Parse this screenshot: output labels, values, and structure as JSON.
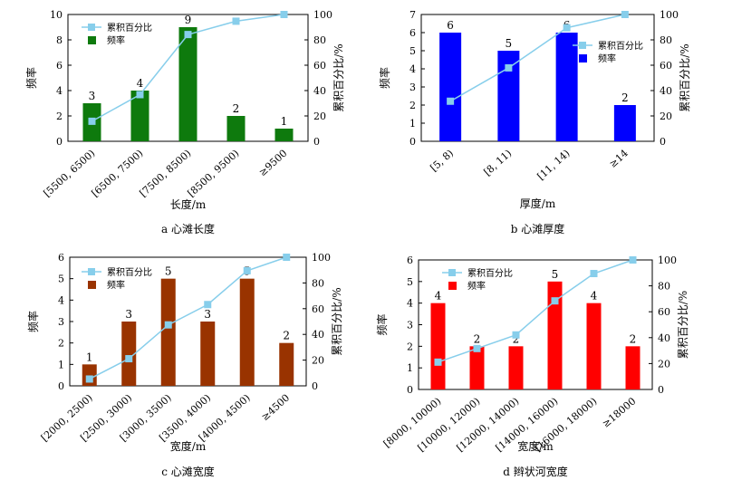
{
  "legend": {
    "line_label": "累积百分比",
    "bar_label": "频率"
  },
  "left_axis_label": "频率",
  "right_axis_label": "累积百分比/%",
  "line_color": "#87CEEB",
  "chart_data": [
    {
      "type": "bar",
      "caption": "a 心滩长度",
      "xlabel": "长度/m",
      "ylabel": "频率",
      "y2label": "累积百分比/%",
      "categories": [
        "[5500, 6500)",
        "[6500, 7500)",
        "[7500, 8500)",
        "[8500, 9500)",
        "≥9500"
      ],
      "values": [
        3,
        4,
        9,
        2,
        1
      ],
      "cumulative": [
        15.8,
        36.8,
        84.2,
        94.7,
        100
      ],
      "ylim": [
        0,
        10
      ],
      "yticks": [
        0,
        2,
        4,
        6,
        8,
        10
      ],
      "y2lim": [
        0,
        100
      ],
      "bar_color": "#0E7A0D",
      "legend_position": "top-left"
    },
    {
      "type": "bar",
      "caption": "b 心滩厚度",
      "xlabel": "厚度/m",
      "ylabel": "频率",
      "y2label": "累积百分比/%",
      "categories": [
        "[5, 8)",
        "[8, 11)",
        "[11, 14)",
        "≥14"
      ],
      "values": [
        6,
        5,
        6,
        2
      ],
      "cumulative": [
        31.6,
        57.9,
        89.5,
        100
      ],
      "ylim": [
        0,
        7
      ],
      "yticks": [
        0,
        1,
        2,
        3,
        4,
        5,
        6,
        7
      ],
      "y2lim": [
        0,
        100
      ],
      "bar_color": "#0000FF",
      "legend_position": "top-right"
    },
    {
      "type": "bar",
      "caption": "c 心滩宽度",
      "xlabel": "宽度/m",
      "ylabel": "频率",
      "y2label": "累积百分比/%",
      "categories": [
        "[2000, 2500)",
        "[2500, 3000)",
        "[3000, 3500)",
        "[3500, 4000)",
        "[4000, 4500)",
        "≥4500"
      ],
      "values": [
        1,
        3,
        5,
        3,
        5,
        2
      ],
      "cumulative": [
        5.3,
        21.1,
        47.4,
        63.2,
        89.5,
        100
      ],
      "ylim": [
        0,
        6
      ],
      "yticks": [
        0,
        1,
        2,
        3,
        4,
        5,
        6
      ],
      "y2lim": [
        0,
        100
      ],
      "bar_color": "#993300",
      "legend_position": "top-left"
    },
    {
      "type": "bar",
      "caption": "d 辫状河宽度",
      "xlabel": "宽度/m",
      "ylabel": "频率",
      "y2label": "累积百分比/%",
      "categories": [
        "[8000, 10000)",
        "[10000, 12000)",
        "[12000, 14000)",
        "[14000, 16000)",
        "[16000, 18000)",
        "≥18000"
      ],
      "values": [
        4,
        2,
        2,
        5,
        4,
        2
      ],
      "cumulative": [
        21.1,
        31.6,
        42.1,
        68.4,
        89.5,
        100
      ],
      "ylim": [
        0,
        6
      ],
      "yticks": [
        0,
        1,
        2,
        3,
        4,
        5,
        6
      ],
      "y2lim": [
        0,
        100
      ],
      "bar_color": "#FF0000",
      "legend_position": "top-left"
    }
  ]
}
